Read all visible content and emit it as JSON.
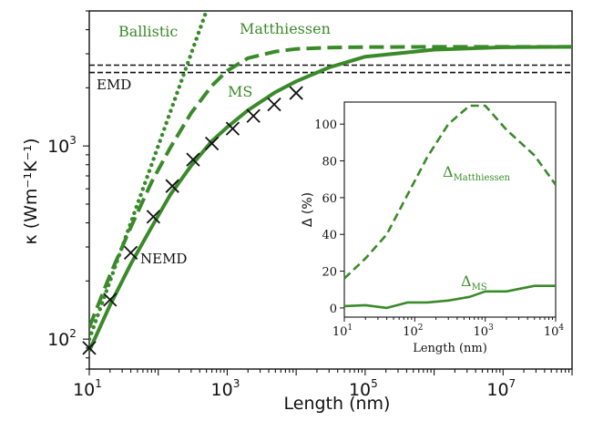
{
  "chart_data": [
    {
      "type": "line",
      "xlabel": "Length (nm)",
      "ylabel": "κ (Wm⁻¹K⁻¹)",
      "xscale": "log",
      "yscale": "log",
      "xlim": [
        10,
        100000000
      ],
      "ylim": [
        70,
        5000
      ],
      "xticks": [
        {
          "value": 10,
          "base": "10",
          "exp": "1"
        },
        {
          "value": 1000,
          "base": "10",
          "exp": "3"
        },
        {
          "value": 100000,
          "base": "10",
          "exp": "5"
        },
        {
          "value": 10000000,
          "base": "10",
          "exp": "7"
        }
      ],
      "yticks": [
        {
          "value": 100,
          "base": "10",
          "exp": "2"
        },
        {
          "value": 1000,
          "base": "10",
          "exp": "3"
        }
      ],
      "grid": false,
      "color": "#3a8a2a",
      "series": [
        {
          "name": "Ballistic",
          "style": "dotted",
          "x": [
            10,
            20,
            40,
            80,
            150,
            300,
            500
          ],
          "y": [
            100,
            200,
            400,
            800,
            1500,
            3000,
            5000
          ]
        },
        {
          "name": "Matthiessen",
          "style": "dashed",
          "x": [
            10,
            20,
            40,
            80,
            150,
            300,
            600,
            1000,
            2000,
            5000,
            10000,
            30000,
            100000,
            1000000,
            10000000,
            100000000
          ],
          "y": [
            115,
            215,
            380,
            650,
            980,
            1480,
            2050,
            2450,
            2850,
            3080,
            3180,
            3230,
            3250,
            3260,
            3260,
            3260
          ]
        },
        {
          "name": "MS",
          "style": "solid",
          "x": [
            10,
            20,
            40,
            80,
            150,
            300,
            600,
            1000,
            2000,
            5000,
            10000,
            30000,
            100000,
            1000000,
            10000000,
            100000000
          ],
          "y": [
            87,
            150,
            245,
            380,
            560,
            790,
            1060,
            1250,
            1530,
            1900,
            2160,
            2550,
            2900,
            3150,
            3240,
            3260
          ]
        },
        {
          "name": "NEMD",
          "style": "markers-x",
          "x": [
            10,
            20,
            40,
            85,
            160,
            320,
            600,
            1200,
            2400,
            4800,
            10000
          ],
          "y": [
            90,
            160,
            280,
            430,
            620,
            850,
            1030,
            1230,
            1430,
            1640,
            1880
          ]
        },
        {
          "name": "EMD",
          "style": "black-dashed-band",
          "y": [
            2400,
            2620
          ]
        }
      ],
      "annotations": [
        {
          "text": "Ballistic",
          "color": "green"
        },
        {
          "text": "Matthiessen",
          "color": "green"
        },
        {
          "text": "MS",
          "color": "green"
        },
        {
          "text": "EMD",
          "color": "black"
        },
        {
          "text": "NEMD",
          "color": "black"
        }
      ]
    },
    {
      "type": "line",
      "inset": true,
      "xlabel": "Length (nm)",
      "ylabel": "Δ (%)",
      "xscale": "log",
      "xlim": [
        10,
        10000
      ],
      "ylim": [
        -5,
        112
      ],
      "xticks": [
        {
          "value": 10,
          "base": "10",
          "exp": "1"
        },
        {
          "value": 100,
          "base": "10",
          "exp": "2"
        },
        {
          "value": 1000,
          "base": "10",
          "exp": "3"
        },
        {
          "value": 10000,
          "base": "10",
          "exp": "4"
        }
      ],
      "yticks": [
        0,
        20,
        40,
        60,
        80,
        100
      ],
      "series": [
        {
          "name": "Matthiessen",
          "style": "dashed",
          "x": [
            10,
            20,
            40,
            80,
            150,
            300,
            600,
            1000,
            2000,
            5000,
            10000
          ],
          "y": [
            16,
            27,
            40,
            62,
            82,
            100,
            110,
            110,
            97,
            83,
            67
          ]
        },
        {
          "name": "MS",
          "style": "solid",
          "x": [
            10,
            20,
            40,
            80,
            150,
            300,
            600,
            1000,
            2000,
            5000,
            10000
          ],
          "y": [
            1,
            1.5,
            0,
            3,
            3,
            4,
            6,
            9,
            9,
            12,
            12
          ]
        }
      ],
      "annotations": [
        {
          "text": "Δ",
          "sub": "Matthiessen"
        },
        {
          "text": "Δ",
          "sub": "MS"
        }
      ]
    }
  ]
}
